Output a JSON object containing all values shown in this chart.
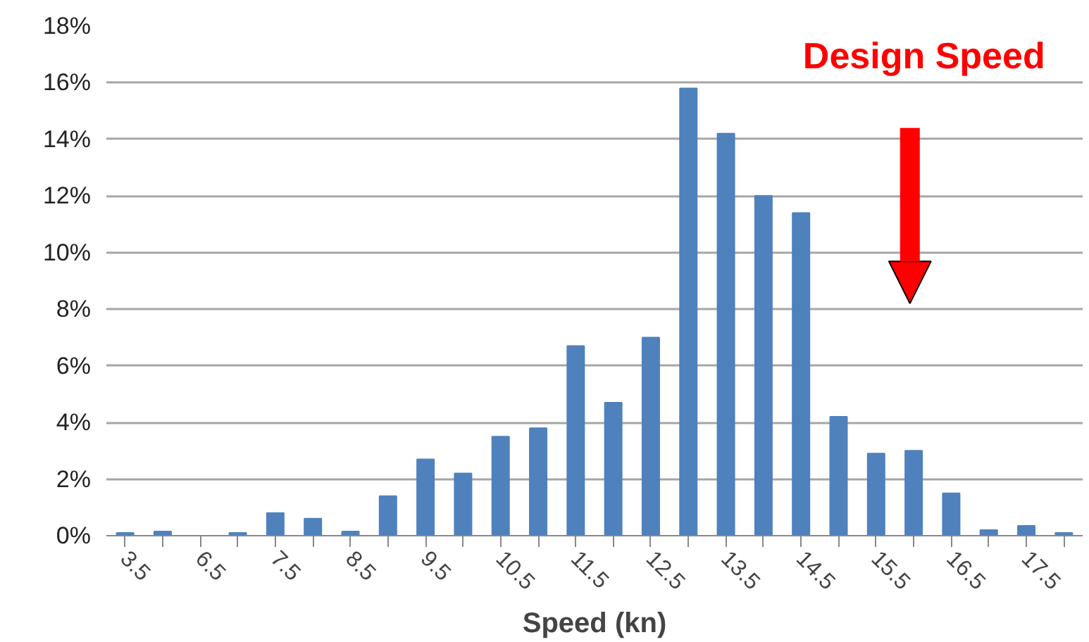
{
  "chart_data": {
    "type": "bar",
    "xlabel": "Speed (kn)",
    "categories": [
      "3.5",
      null,
      "6.5",
      null,
      "7.5",
      null,
      "8.5",
      null,
      "9.5",
      null,
      "10.5",
      null,
      "11.5",
      null,
      "12.5",
      null,
      "13.5",
      null,
      "14.5",
      null,
      "15.5",
      null,
      "16.5",
      null,
      "17.5",
      null
    ],
    "values": [
      0.1,
      0.15,
      0,
      0.1,
      0.8,
      0.6,
      0.15,
      1.4,
      2.7,
      2.2,
      3.5,
      3.8,
      6.7,
      4.7,
      7.0,
      15.8,
      14.2,
      12.0,
      11.4,
      4.2,
      2.9,
      3.0,
      1.5,
      0.2,
      0.35,
      0.1
    ],
    "color": "#4f81bd",
    "ylim": [
      0,
      18
    ],
    "yticks": [
      {
        "value": 0,
        "label": "0%"
      },
      {
        "value": 2,
        "label": "2%"
      },
      {
        "value": 4,
        "label": "4%"
      },
      {
        "value": 6,
        "label": "6%"
      },
      {
        "value": 8,
        "label": "8%"
      },
      {
        "value": 10,
        "label": "10%"
      },
      {
        "value": 12,
        "label": "12%"
      },
      {
        "value": 14,
        "label": "14%"
      },
      {
        "value": 16,
        "label": "16%"
      },
      {
        "value": 18,
        "label": "18%"
      }
    ],
    "grid": "y",
    "annotations": [
      "Design Speed"
    ]
  }
}
